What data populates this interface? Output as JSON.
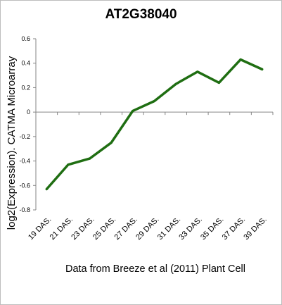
{
  "chart_data": {
    "type": "line",
    "title": "AT2G38040",
    "xlabel": "Data from Breeze et al (2011) Plant Cell",
    "ylabel": "log2(Expression). CATMA Microarray",
    "categories": [
      "19 DAS.",
      "21 DAS.",
      "23 DAS.",
      "25 DAS.",
      "27 DAS.",
      "29 DAS.",
      "31 DAS.",
      "33 DAS.",
      "35 DAS.",
      "37 DAS.",
      "39 DAS."
    ],
    "series": [
      {
        "values": [
          -0.63,
          -0.43,
          -0.38,
          -0.25,
          0.01,
          0.09,
          0.23,
          0.33,
          0.24,
          0.43,
          0.35
        ],
        "color": "#1f6e12"
      }
    ],
    "ylim": [
      -0.8,
      0.6
    ],
    "yticks": [
      0.6,
      0.4,
      0.2,
      0,
      -0.2,
      -0.4,
      -0.6,
      -0.8
    ],
    "ytick_labels": [
      "0.6",
      "0.4",
      "0.2",
      "0",
      "-0.2",
      "-0.4",
      "-0.6",
      "-0.8"
    ],
    "grid": false,
    "legend": "none"
  }
}
